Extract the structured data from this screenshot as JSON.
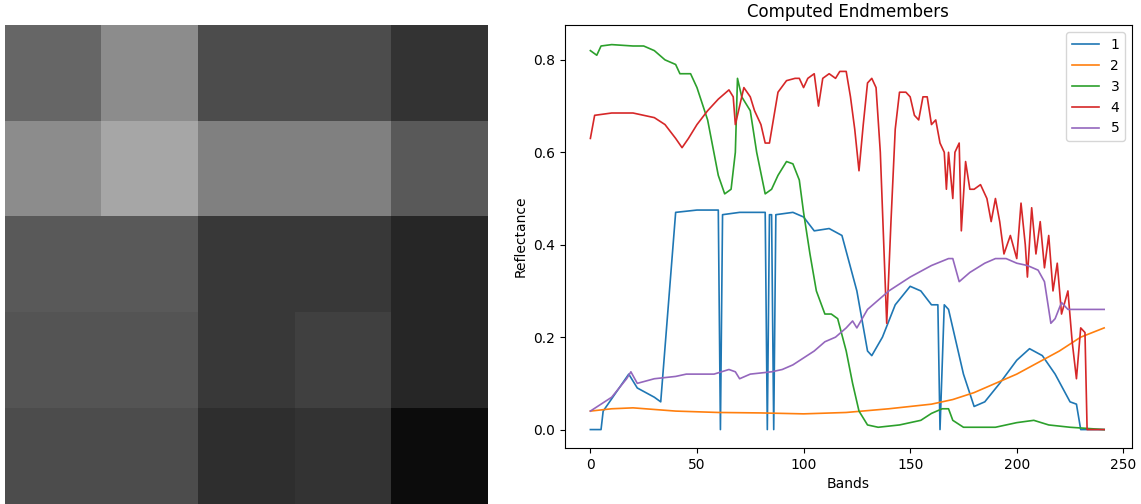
{
  "chart_data": [
    {
      "type": "heatmap",
      "tick_labels": false,
      "cells": [
        [
          0.4,
          0.55,
          0.3,
          0.3,
          0.2
        ],
        [
          0.55,
          0.65,
          0.5,
          0.5,
          0.35
        ],
        [
          0.35,
          0.35,
          0.22,
          0.22,
          0.15
        ],
        [
          0.33,
          0.33,
          0.22,
          0.25,
          0.15
        ],
        [
          0.3,
          0.3,
          0.18,
          0.2,
          0.05
        ]
      ],
      "color_range": [
        0,
        1
      ]
    },
    {
      "type": "line",
      "title": "Computed Endmembers",
      "x_label": "Bands",
      "y_label": "Reflectance",
      "xlim": [
        -12,
        254
      ],
      "ylim": [
        -0.04,
        0.875
      ],
      "xticks": [
        0,
        50,
        100,
        150,
        200,
        250
      ],
      "yticks": [
        {
          "value": 0,
          "label": "0.0"
        },
        0.2,
        0.4,
        0.6,
        0.8
      ],
      "legend": "upper right",
      "grid": false,
      "series": [
        {
          "name": "1",
          "color": "#1f77b4",
          "x": [
            0,
            5,
            6,
            18,
            22,
            30,
            33,
            40,
            50,
            60,
            61,
            62,
            70,
            82,
            83,
            84,
            85,
            86,
            87,
            95,
            100,
            105,
            112,
            118,
            125,
            130,
            132,
            137,
            143,
            150,
            155,
            160,
            163,
            164,
            166,
            168,
            175,
            180,
            185,
            192,
            200,
            206,
            212,
            218,
            225,
            228,
            230,
            241
          ],
          "values": [
            0,
            0,
            0.04,
            0.12,
            0.09,
            0.07,
            0.06,
            0.47,
            0.475,
            0.475,
            0,
            0.465,
            0.47,
            0.47,
            0,
            0.465,
            0.465,
            0,
            0.465,
            0.47,
            0.46,
            0.43,
            0.435,
            0.42,
            0.3,
            0.17,
            0.16,
            0.2,
            0.27,
            0.31,
            0.3,
            0.27,
            0.27,
            0,
            0.27,
            0.26,
            0.12,
            0.05,
            0.06,
            0.1,
            0.15,
            0.175,
            0.16,
            0.12,
            0.06,
            0.055,
            0,
            0
          ]
        },
        {
          "name": "2",
          "color": "#ff7f0e",
          "x": [
            0,
            10,
            20,
            40,
            60,
            80,
            100,
            120,
            140,
            160,
            170,
            180,
            190,
            200,
            210,
            220,
            230,
            241
          ],
          "values": [
            0.04,
            0.045,
            0.047,
            0.04,
            0.037,
            0.036,
            0.034,
            0.037,
            0.045,
            0.055,
            0.065,
            0.08,
            0.1,
            0.12,
            0.145,
            0.17,
            0.2,
            0.22
          ]
        },
        {
          "name": "3",
          "color": "#2ca02c",
          "x": [
            0,
            3,
            5,
            10,
            20,
            25,
            30,
            35,
            40,
            42,
            47,
            50,
            55,
            60,
            63,
            66,
            68,
            69,
            71,
            75,
            78,
            82,
            85,
            88,
            92,
            95,
            98,
            100,
            103,
            106,
            110,
            113,
            116,
            120,
            123,
            126,
            130,
            135,
            145,
            155,
            160,
            165,
            168,
            170,
            175,
            190,
            200,
            208,
            215,
            225,
            241
          ],
          "values": [
            0.82,
            0.81,
            0.83,
            0.833,
            0.83,
            0.83,
            0.82,
            0.8,
            0.79,
            0.77,
            0.77,
            0.74,
            0.67,
            0.55,
            0.51,
            0.52,
            0.6,
            0.76,
            0.72,
            0.69,
            0.6,
            0.51,
            0.52,
            0.55,
            0.58,
            0.575,
            0.54,
            0.47,
            0.38,
            0.3,
            0.25,
            0.25,
            0.24,
            0.17,
            0.1,
            0.04,
            0.01,
            0.005,
            0.01,
            0.02,
            0.035,
            0.045,
            0.045,
            0.02,
            0.005,
            0.005,
            0.015,
            0.02,
            0.01,
            0.005,
            0
          ]
        },
        {
          "name": "4",
          "color": "#d62728",
          "x": [
            0,
            2,
            10,
            20,
            30,
            35,
            40,
            43,
            46,
            50,
            55,
            60,
            65,
            67,
            68,
            70,
            72,
            75,
            77,
            80,
            82,
            84,
            88,
            92,
            96,
            98,
            100,
            102,
            105,
            107,
            109,
            112,
            115,
            117,
            120,
            122,
            124,
            126,
            128,
            130,
            132,
            134,
            136,
            139,
            141,
            143,
            145,
            148,
            150,
            152,
            154,
            156,
            158,
            160,
            162,
            164,
            166,
            167,
            168,
            170,
            171,
            173,
            174,
            176,
            178,
            180,
            183,
            186,
            188,
            190,
            192,
            194,
            197,
            200,
            202,
            204,
            205,
            207,
            209,
            211,
            213,
            215,
            217,
            219,
            221,
            224,
            226,
            228,
            230,
            232,
            233,
            241
          ],
          "values": [
            0.63,
            0.68,
            0.685,
            0.685,
            0.675,
            0.66,
            0.63,
            0.61,
            0.63,
            0.66,
            0.69,
            0.715,
            0.735,
            0.72,
            0.66,
            0.7,
            0.74,
            0.72,
            0.69,
            0.66,
            0.62,
            0.62,
            0.73,
            0.755,
            0.76,
            0.76,
            0.74,
            0.76,
            0.77,
            0.7,
            0.76,
            0.77,
            0.76,
            0.775,
            0.775,
            0.72,
            0.65,
            0.56,
            0.66,
            0.75,
            0.76,
            0.74,
            0.6,
            0.23,
            0.45,
            0.65,
            0.73,
            0.73,
            0.72,
            0.68,
            0.67,
            0.72,
            0.72,
            0.66,
            0.67,
            0.62,
            0.6,
            0.52,
            0.6,
            0.5,
            0.6,
            0.62,
            0.43,
            0.58,
            0.52,
            0.52,
            0.53,
            0.5,
            0.45,
            0.5,
            0.45,
            0.38,
            0.42,
            0.37,
            0.49,
            0.4,
            0.33,
            0.48,
            0.38,
            0.45,
            0.35,
            0.42,
            0.3,
            0.36,
            0.25,
            0.3,
            0.19,
            0.11,
            0.22,
            0.21,
            0,
            0
          ]
        },
        {
          "name": "5",
          "color": "#9467bd",
          "x": [
            0,
            10,
            17,
            19,
            22,
            30,
            40,
            45,
            50,
            58,
            65,
            68,
            70,
            75,
            85,
            90,
            95,
            100,
            105,
            110,
            115,
            120,
            123,
            125,
            130,
            140,
            150,
            160,
            168,
            170,
            173,
            178,
            185,
            190,
            195,
            200,
            205,
            210,
            213,
            216,
            218,
            221,
            224,
            230,
            235,
            241
          ],
          "values": [
            0.04,
            0.07,
            0.11,
            0.125,
            0.1,
            0.11,
            0.115,
            0.12,
            0.12,
            0.12,
            0.13,
            0.125,
            0.11,
            0.12,
            0.125,
            0.13,
            0.14,
            0.155,
            0.17,
            0.19,
            0.2,
            0.22,
            0.235,
            0.22,
            0.26,
            0.3,
            0.33,
            0.355,
            0.37,
            0.37,
            0.32,
            0.34,
            0.36,
            0.37,
            0.37,
            0.36,
            0.355,
            0.345,
            0.32,
            0.23,
            0.24,
            0.275,
            0.26,
            0.26,
            0.26,
            0.26
          ]
        }
      ]
    }
  ]
}
